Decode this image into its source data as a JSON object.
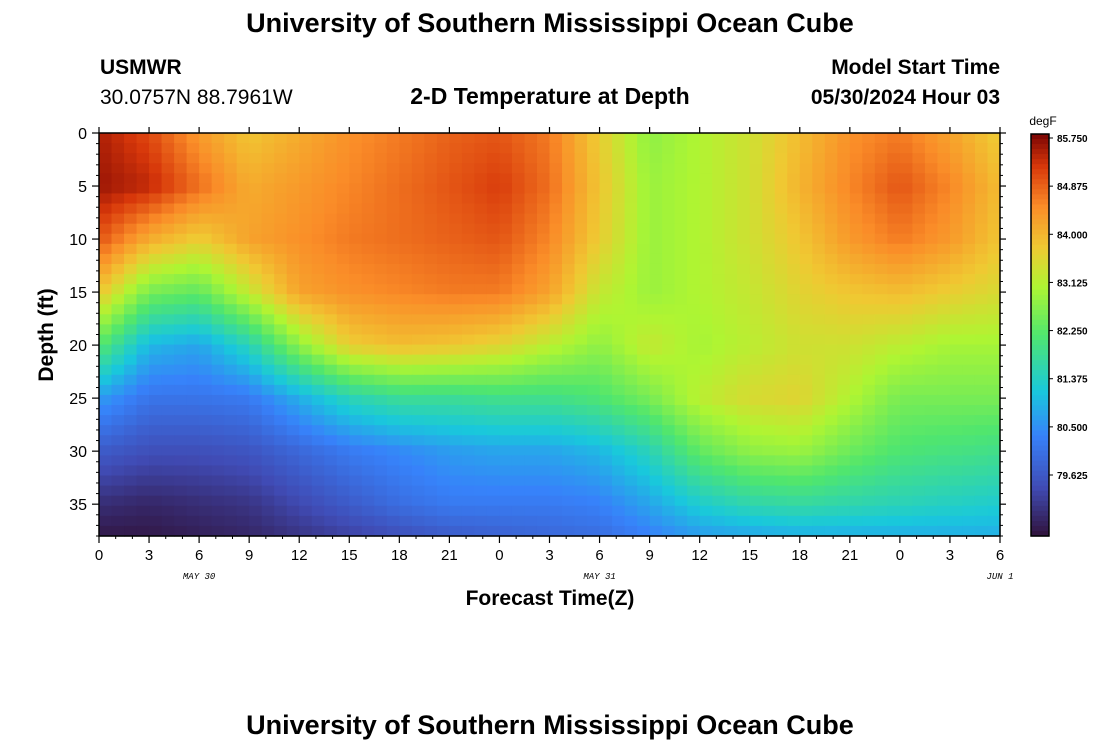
{
  "header": {
    "title": "University of Southern Mississippi Ocean Cube",
    "station": "USMWR",
    "coords": "30.0757N  88.7961W",
    "plot_title": "2-D Temperature at Depth",
    "model_label": "Model Start Time",
    "model_time": "05/30/2024 Hour 03"
  },
  "footer": {
    "title": "University of Southern Mississippi Ocean Cube"
  },
  "chart_data": {
    "type": "heatmap",
    "title": "2-D Temperature at Depth",
    "xlabel": "Forecast Time(Z)",
    "ylabel": "Depth (ft)",
    "colorbar_unit": "degF",
    "colorbar_ticks": [
      "85.750",
      "84.875",
      "84.000",
      "83.125",
      "82.250",
      "81.375",
      "80.500",
      "79.625"
    ],
    "color_range": [
      79.0,
      85.9
    ],
    "x_ticks": [
      "0",
      "3",
      "6",
      "9",
      "12",
      "15",
      "18",
      "21",
      "0",
      "3",
      "6",
      "9",
      "12",
      "15",
      "18",
      "21",
      "0",
      "3",
      "6"
    ],
    "date_labels": [
      {
        "label": "MAY 30",
        "hour": 6
      },
      {
        "label": "MAY 31",
        "hour": 30
      },
      {
        "label": "JUN 1",
        "hour": 54
      }
    ],
    "y_ticks": [
      0,
      5,
      10,
      15,
      20,
      25,
      30,
      35
    ],
    "xlim": [
      0,
      54
    ],
    "ylim": [
      0,
      38
    ],
    "depths": [
      0,
      5,
      10,
      15,
      20,
      25,
      30,
      35,
      38
    ],
    "hours": [
      0,
      3,
      6,
      9,
      12,
      15,
      18,
      21,
      24,
      27,
      30,
      33,
      36,
      39,
      42,
      45,
      48,
      51,
      54
    ],
    "values": [
      [
        85.6,
        85.2,
        84.5,
        84.0,
        84.3,
        84.6,
        84.8,
        85.0,
        85.1,
        84.8,
        83.9,
        83.0,
        83.3,
        83.6,
        84.1,
        84.6,
        84.8,
        84.4,
        83.9
      ],
      [
        85.7,
        85.5,
        84.9,
        84.3,
        84.5,
        84.7,
        84.9,
        85.1,
        85.3,
        84.9,
        84.0,
        83.1,
        83.3,
        83.6,
        84.2,
        84.7,
        85.1,
        84.7,
        84.1
      ],
      [
        85.1,
        84.3,
        83.9,
        84.4,
        84.6,
        84.8,
        84.9,
        85.0,
        85.1,
        84.7,
        83.9,
        83.1,
        83.3,
        83.6,
        84.0,
        84.5,
        84.8,
        84.5,
        84.0
      ],
      [
        84.0,
        82.8,
        82.6,
        83.5,
        84.4,
        84.6,
        84.7,
        84.8,
        84.8,
        84.4,
        83.5,
        83.1,
        83.3,
        83.5,
        83.8,
        84.0,
        84.1,
        83.9,
        83.7
      ],
      [
        82.5,
        81.3,
        81.1,
        81.8,
        83.0,
        83.9,
        84.1,
        84.0,
        83.8,
        83.4,
        83.0,
        83.5,
        83.2,
        83.4,
        83.6,
        83.6,
        83.4,
        83.2,
        83.2
      ],
      [
        81.0,
        80.5,
        80.5,
        80.6,
        81.2,
        81.8,
        82.1,
        82.1,
        82.2,
        82.2,
        82.4,
        82.8,
        83.4,
        83.7,
        83.8,
        83.3,
        82.8,
        82.8,
        82.8
      ],
      [
        80.1,
        79.9,
        79.9,
        80.0,
        80.3,
        80.6,
        80.8,
        81.0,
        81.1,
        81.1,
        81.3,
        81.8,
        82.6,
        83.0,
        83.1,
        82.7,
        82.4,
        82.3,
        82.2
      ],
      [
        79.4,
        79.3,
        79.4,
        79.5,
        79.8,
        80.1,
        80.4,
        80.6,
        80.6,
        80.6,
        80.7,
        81.1,
        81.6,
        81.9,
        82.0,
        81.9,
        81.8,
        81.7,
        81.6
      ],
      [
        79.1,
        79.1,
        79.2,
        79.3,
        79.5,
        79.7,
        79.9,
        80.1,
        80.2,
        80.3,
        80.4,
        80.7,
        81.0,
        81.1,
        81.2,
        81.2,
        81.2,
        81.2,
        81.2
      ]
    ]
  }
}
